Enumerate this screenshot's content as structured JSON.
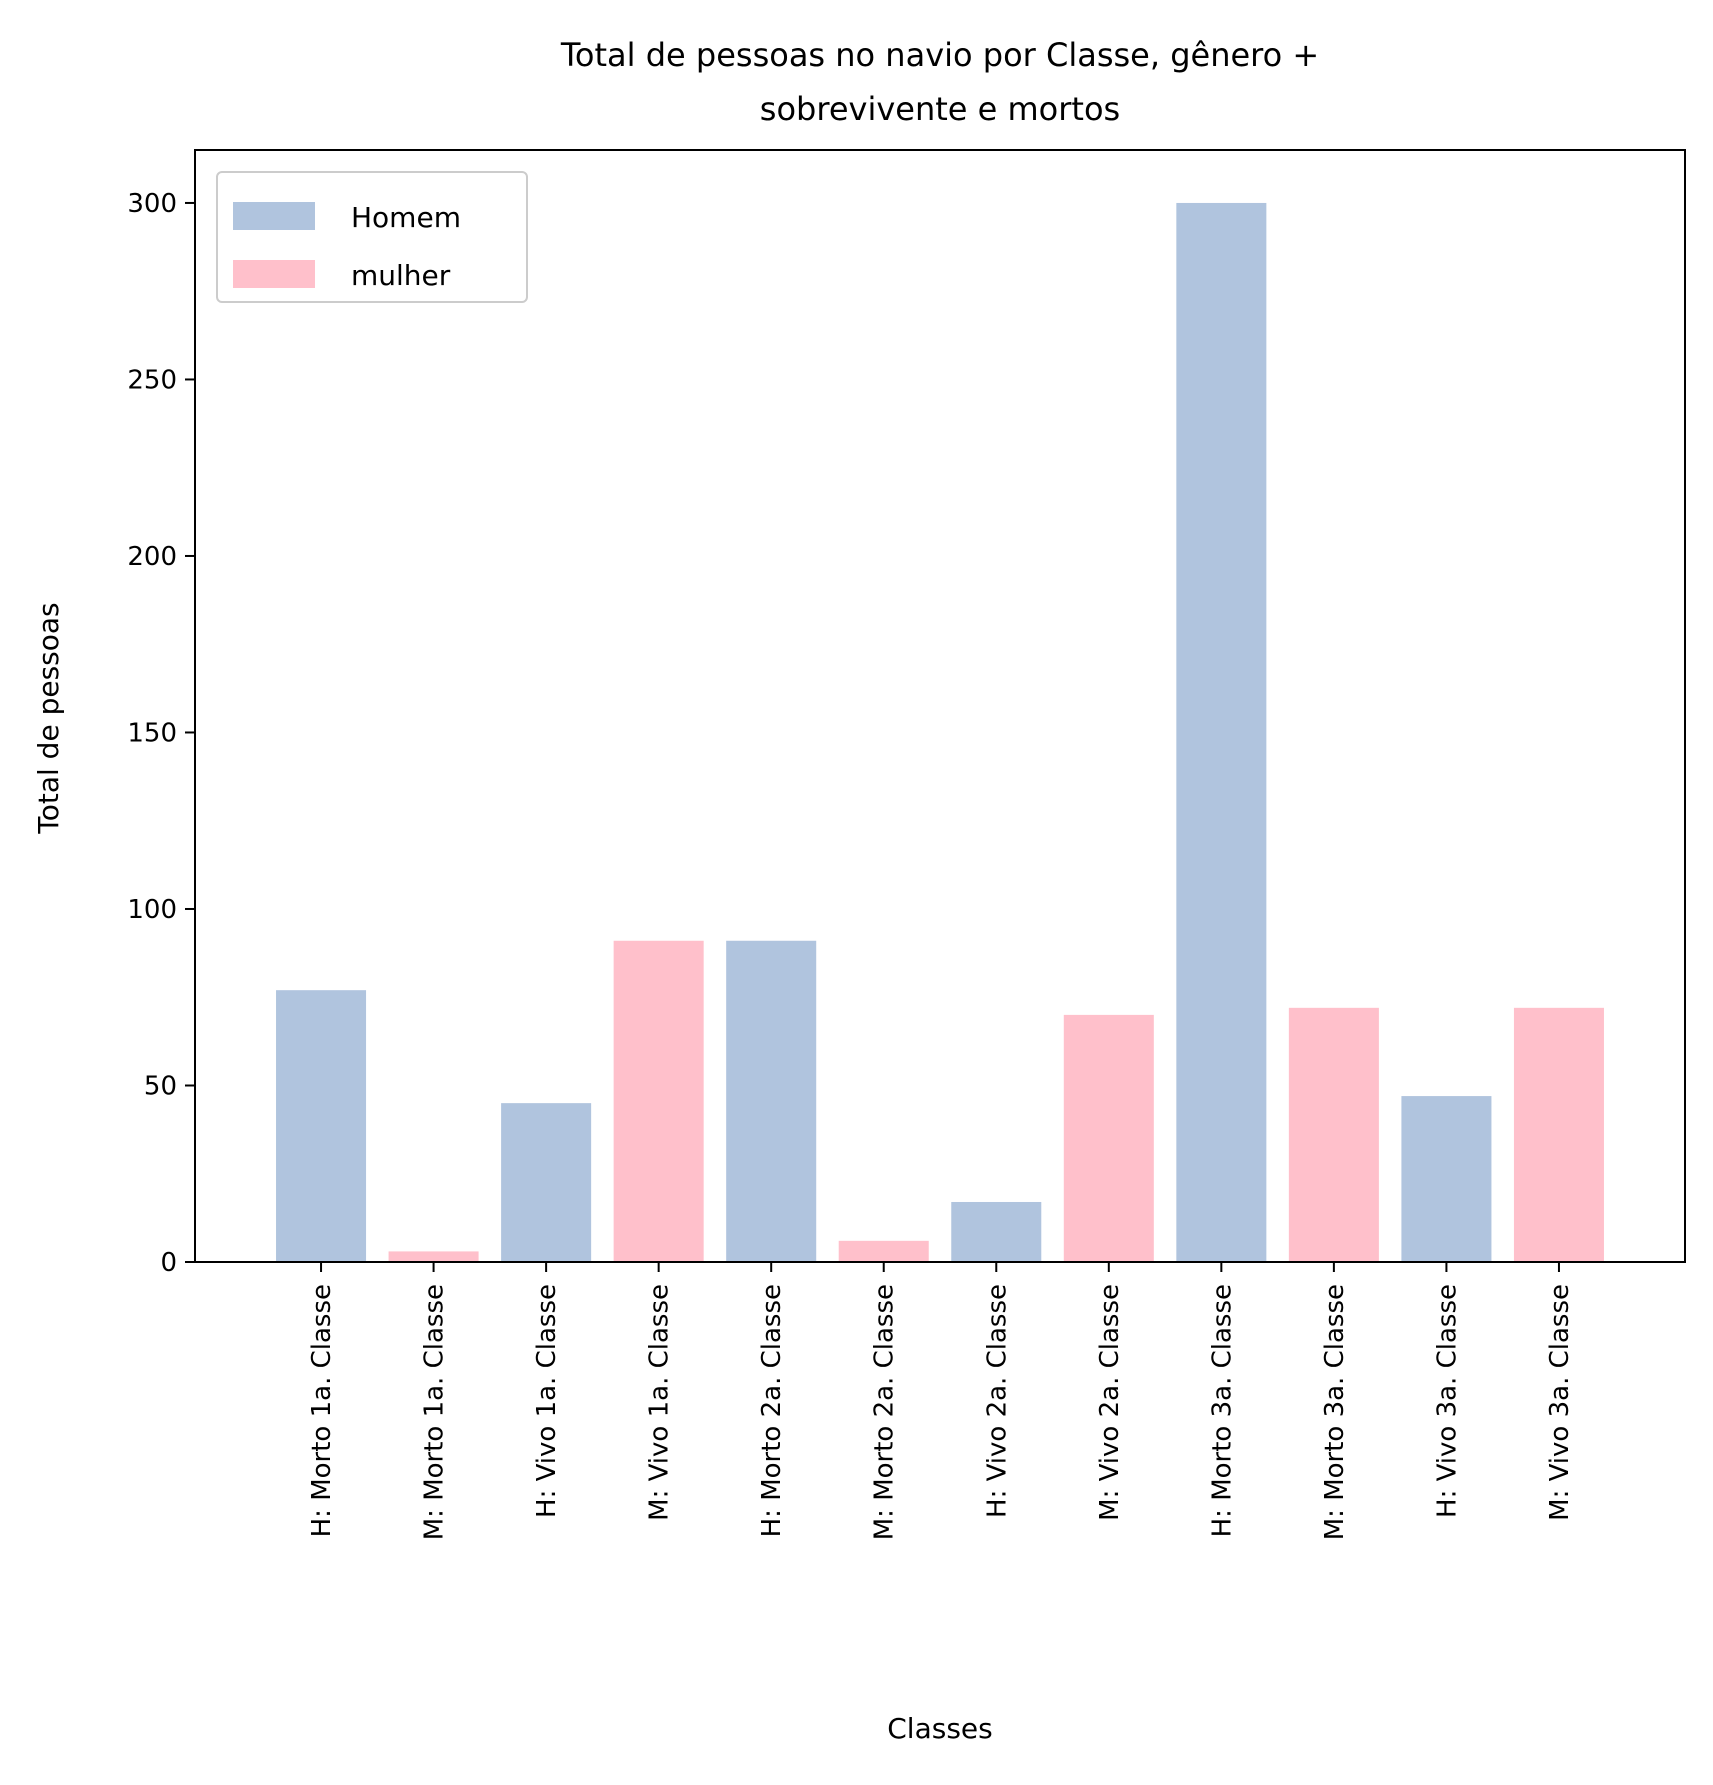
{
  "chart_data": {
    "type": "bar",
    "title_lines": [
      "Total de pessoas no navio por Classe, gênero +",
      "sobrevivente e mortos"
    ],
    "xlabel": "Classes",
    "ylabel": "Total de pessoas",
    "ylim": [
      0,
      315
    ],
    "yticks": [
      0,
      50,
      100,
      150,
      200,
      250,
      300
    ],
    "grid": false,
    "legend_position": "top-left",
    "colors": {
      "Homem": "#b0c4de",
      "mulher": "#ffc0cb"
    },
    "legend": [
      "Homem",
      "mulher"
    ],
    "categories": [
      "H: Morto 1a. Classe",
      "M: Morto 1a. Classe",
      "H: Vivo 1a. Classe",
      "M: Vivo 1a. Classe",
      "H: Morto 2a. Classe",
      "M: Morto 2a. Classe",
      "H: Vivo 2a. Classe",
      "M: Vivo 2a. Classe",
      "H: Morto 3a. Classe",
      "M: Morto 3a. Classe",
      "H: Vivo 3a. Classe",
      "M: Vivo 3a. Classe"
    ],
    "values": [
      77,
      3,
      45,
      91,
      91,
      6,
      17,
      70,
      300,
      72,
      47,
      72
    ],
    "genders": [
      "Homem",
      "mulher",
      "Homem",
      "mulher",
      "Homem",
      "mulher",
      "Homem",
      "mulher",
      "Homem",
      "mulher",
      "Homem",
      "mulher"
    ]
  }
}
